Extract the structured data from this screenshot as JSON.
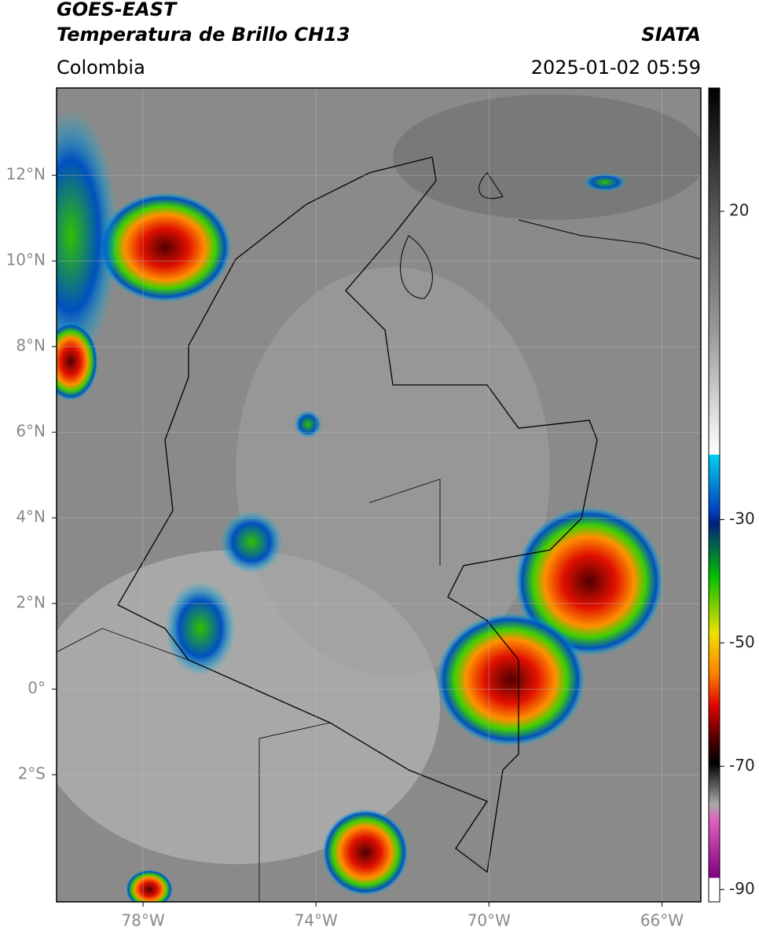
{
  "header": {
    "title": "GOES-EAST",
    "subtitle": "Temperatura de Brillo CH13",
    "source": "SIATA",
    "region": "Colombia",
    "datetime": "2025-01-02 05:59"
  },
  "map": {
    "lonlim": [
      -80,
      -65.1
    ],
    "latlim": [
      -4.97,
      14.04
    ],
    "lat_ticks": [
      {
        "value": 12,
        "label": "12°N"
      },
      {
        "value": 10,
        "label": "10°N"
      },
      {
        "value": 8,
        "label": "8°N"
      },
      {
        "value": 6,
        "label": "6°N"
      },
      {
        "value": 4,
        "label": "4°N"
      },
      {
        "value": 2,
        "label": "2°N"
      },
      {
        "value": 0,
        "label": "0°"
      },
      {
        "value": -2,
        "label": "2°S"
      }
    ],
    "lon_ticks": [
      {
        "value": -78,
        "label": "78°W"
      },
      {
        "value": -74,
        "label": "74°W"
      },
      {
        "value": -70,
        "label": "70°W"
      },
      {
        "value": -66,
        "label": "66°W"
      }
    ],
    "grid": true
  },
  "colorbar": {
    "lim": [
      -92,
      40
    ],
    "ticks": [
      20,
      -30,
      -50,
      -70,
      -90
    ]
  }
}
